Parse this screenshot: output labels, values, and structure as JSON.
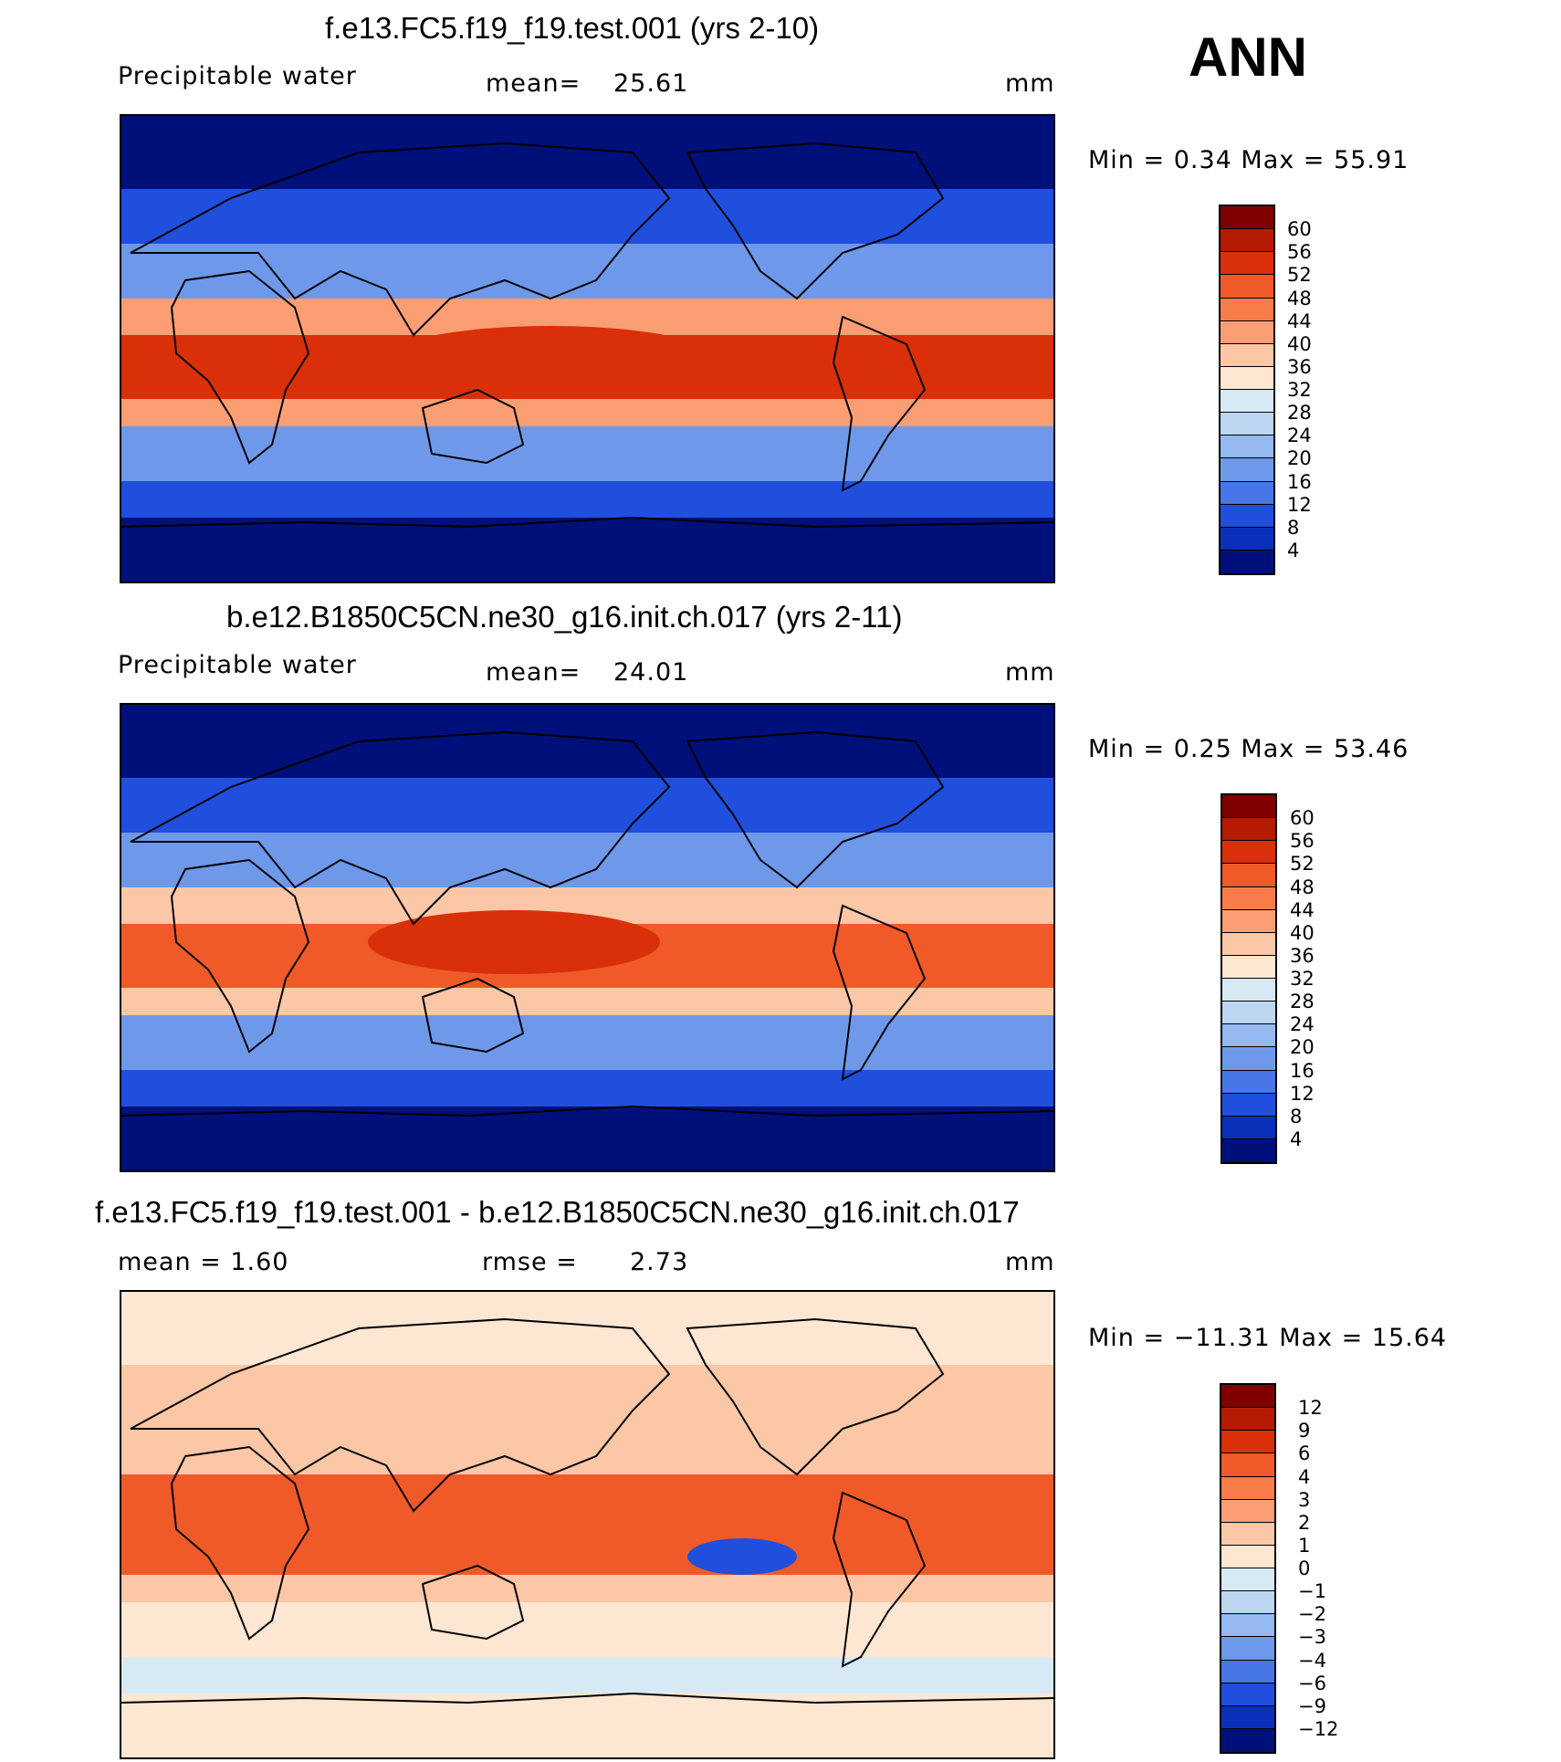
{
  "season": "ANN",
  "panels": [
    {
      "id": "test",
      "title": "f.e13.FC5.f19_f19.test.001 (yrs 2-10)",
      "left_label": "Precipitable  water",
      "stat1_label": "mean=",
      "stat1_value": "25.61",
      "stat2_label": "",
      "stat2_value": "",
      "units": "mm",
      "minmax": "Min  =    0.34  Max  =    55.91",
      "colorbar": {
        "labels": [
          "60",
          "56",
          "52",
          "48",
          "44",
          "40",
          "36",
          "32",
          "28",
          "24",
          "20",
          "16",
          "12",
          "8",
          "4"
        ],
        "colors": [
          "#7f0000",
          "#b51b00",
          "#d9300a",
          "#f05a28",
          "#f77c4a",
          "#fb9e74",
          "#fcc7a6",
          "#fde6d2",
          "#d8e9f6",
          "#bcd6f2",
          "#94b8f0",
          "#6e99ea",
          "#4776e6",
          "#1f4fdc",
          "#0a2fb8",
          "#00107a"
        ]
      }
    },
    {
      "id": "control",
      "title": "b.e12.B1850C5CN.ne30_g16.init.ch.017 (yrs 2-11)",
      "left_label": "Precipitable  water",
      "stat1_label": "mean=",
      "stat1_value": "24.01",
      "stat2_label": "",
      "stat2_value": "",
      "units": "mm",
      "minmax": "Min  =    0.25  Max  =    53.46",
      "colorbar": {
        "labels": [
          "60",
          "56",
          "52",
          "48",
          "44",
          "40",
          "36",
          "32",
          "28",
          "24",
          "20",
          "16",
          "12",
          "8",
          "4"
        ],
        "colors": [
          "#7f0000",
          "#b51b00",
          "#d9300a",
          "#f05a28",
          "#f77c4a",
          "#fb9e74",
          "#fcc7a6",
          "#fde6d2",
          "#d8e9f6",
          "#bcd6f2",
          "#94b8f0",
          "#6e99ea",
          "#4776e6",
          "#1f4fdc",
          "#0a2fb8",
          "#00107a"
        ]
      }
    },
    {
      "id": "difference",
      "title": "f.e13.FC5.f19_f19.test.001 - b.e12.B1850C5CN.ne30_g16.init.ch.017",
      "left_label": "mean  =      1.60",
      "stat1_label": "rmse  =",
      "stat1_value": "2.73",
      "stat2_label": "",
      "stat2_value": "",
      "units": "mm",
      "minmax": "Min  =  −11.31  Max  =    15.64",
      "colorbar": {
        "labels": [
          "12",
          "9",
          "6",
          "4",
          "3",
          "2",
          "1",
          "0",
          "−1",
          "−2",
          "−3",
          "−4",
          "−6",
          "−9",
          "−12"
        ],
        "colors": [
          "#7f0000",
          "#b51b00",
          "#d9300a",
          "#f05a28",
          "#f77c4a",
          "#fb9e74",
          "#fcc7a6",
          "#fde6d2",
          "#d8e9f6",
          "#bcd6f2",
          "#94b8f0",
          "#6e99ea",
          "#4776e6",
          "#1f4fdc",
          "#0a2fb8",
          "#00107a"
        ]
      }
    }
  ],
  "map_fields": {
    "test": {
      "equator": "#d9300a",
      "subtropic": "#fb9e74",
      "midlat": "#6e99ea",
      "highlat": "#1f4fdc",
      "polar": "#00107a"
    },
    "control": {
      "equator": "#f05a28",
      "subtropic": "#fcc7a6",
      "midlat": "#6e99ea",
      "highlat": "#1f4fdc",
      "polar": "#00107a"
    },
    "difference": {
      "equator": "#f05a28",
      "subtropic": "#fcc7a6",
      "midlat": "#fde6d2",
      "highlat": "#d8e9f6",
      "polar": "#fde6d2"
    }
  }
}
